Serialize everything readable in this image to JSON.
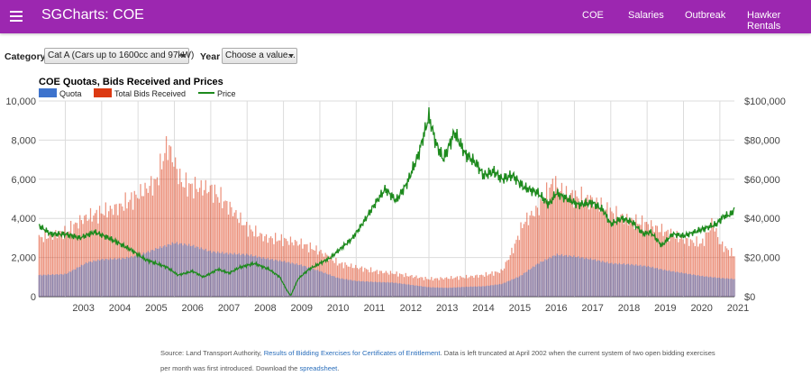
{
  "app": {
    "title": "SGCharts: COE",
    "nav": [
      {
        "label": "COE"
      },
      {
        "label": "Salaries"
      },
      {
        "label": "Outbreak"
      },
      {
        "label": "Hawker Rentals"
      }
    ]
  },
  "filters": {
    "category_label": "Category",
    "category_value": "Cat A (Cars up to 1600cc and 97kW)",
    "year_label": "Year",
    "year_value": "Choose a value..."
  },
  "colors": {
    "appbar": "#9c27b0",
    "quota": "#3d73cd",
    "bids": "#dc3912",
    "price": "#1d8a1d"
  },
  "icons": {
    "menu": "hamburger-menu-icon",
    "dropdown": "caret-down-icon"
  },
  "chart_data": {
    "type": "bar",
    "title": "COE Quotas, Bids Received and Prices",
    "legend": [
      "Quota",
      "Total Bids Received",
      "Price"
    ],
    "legend_position": "top-left",
    "grid": true,
    "y_left": {
      "min": 0,
      "max": 10000,
      "ticks": [
        "0",
        "2,000",
        "4,000",
        "6,000",
        "8,000",
        "10,000"
      ]
    },
    "y_right": {
      "min": 0,
      "max": 100000,
      "ticks": [
        "$0",
        "$20,000",
        "$40,000",
        "$60,000",
        "$80,000",
        "$100,000"
      ]
    },
    "x_years": [
      "2003",
      "2004",
      "2005",
      "2006",
      "2007",
      "2008",
      "2009",
      "2010",
      "2011",
      "2012",
      "2013",
      "2014",
      "2015",
      "2016",
      "2017",
      "2018",
      "2019",
      "2020",
      "2021"
    ],
    "x_range": [
      2002.27,
      2021.4
    ],
    "quota_points": [
      [
        2002.3,
        1100
      ],
      [
        2003.0,
        1150
      ],
      [
        2003.6,
        1750
      ],
      [
        2004.0,
        1900
      ],
      [
        2004.6,
        1950
      ],
      [
        2005.0,
        2100
      ],
      [
        2005.5,
        2450
      ],
      [
        2006.0,
        2750
      ],
      [
        2006.5,
        2600
      ],
      [
        2007.0,
        2300
      ],
      [
        2007.5,
        2200
      ],
      [
        2008.0,
        2150
      ],
      [
        2008.5,
        1950
      ],
      [
        2009.0,
        1800
      ],
      [
        2009.5,
        1600
      ],
      [
        2010.0,
        1300
      ],
      [
        2010.5,
        950
      ],
      [
        2011.0,
        800
      ],
      [
        2011.5,
        750
      ],
      [
        2012.0,
        720
      ],
      [
        2012.5,
        600
      ],
      [
        2013.0,
        480
      ],
      [
        2013.5,
        450
      ],
      [
        2014.0,
        500
      ],
      [
        2014.5,
        530
      ],
      [
        2015.0,
        650
      ],
      [
        2015.5,
        1050
      ],
      [
        2016.0,
        1700
      ],
      [
        2016.5,
        2150
      ],
      [
        2017.0,
        2050
      ],
      [
        2017.5,
        1900
      ],
      [
        2018.0,
        1700
      ],
      [
        2018.5,
        1650
      ],
      [
        2019.0,
        1550
      ],
      [
        2019.5,
        1350
      ],
      [
        2020.0,
        1200
      ],
      [
        2020.5,
        1050
      ],
      [
        2021.0,
        950
      ],
      [
        2021.4,
        900
      ]
    ],
    "bids_points": [
      [
        2002.3,
        3000
      ],
      [
        2003.0,
        3300
      ],
      [
        2003.5,
        4000
      ],
      [
        2004.0,
        4300
      ],
      [
        2004.5,
        4600
      ],
      [
        2005.0,
        5200
      ],
      [
        2005.5,
        5900
      ],
      [
        2005.8,
        7800
      ],
      [
        2006.2,
        5800
      ],
      [
        2006.5,
        5600
      ],
      [
        2007.0,
        5500
      ],
      [
        2007.5,
        4600
      ],
      [
        2008.0,
        3500
      ],
      [
        2008.5,
        3000
      ],
      [
        2009.0,
        2900
      ],
      [
        2009.5,
        2700
      ],
      [
        2010.0,
        2300
      ],
      [
        2010.5,
        1700
      ],
      [
        2011.0,
        1500
      ],
      [
        2011.5,
        1300
      ],
      [
        2012.0,
        1200
      ],
      [
        2012.5,
        1050
      ],
      [
        2013.0,
        900
      ],
      [
        2013.5,
        950
      ],
      [
        2014.0,
        1000
      ],
      [
        2014.5,
        1100
      ],
      [
        2015.0,
        1300
      ],
      [
        2015.3,
        2400
      ],
      [
        2015.6,
        3800
      ],
      [
        2016.0,
        4500
      ],
      [
        2016.4,
        5800
      ],
      [
        2016.7,
        5300
      ],
      [
        2017.0,
        5100
      ],
      [
        2017.5,
        4900
      ],
      [
        2018.0,
        4300
      ],
      [
        2018.5,
        3900
      ],
      [
        2019.0,
        3700
      ],
      [
        2019.5,
        3300
      ],
      [
        2020.0,
        2900
      ],
      [
        2020.5,
        2700
      ],
      [
        2020.8,
        3800
      ],
      [
        2021.0,
        2700
      ],
      [
        2021.4,
        2100
      ]
    ],
    "price_points": [
      [
        2002.3,
        36000
      ],
      [
        2002.6,
        32000
      ],
      [
        2003.0,
        32000
      ],
      [
        2003.4,
        30000
      ],
      [
        2003.8,
        33000
      ],
      [
        2004.2,
        30000
      ],
      [
        2004.5,
        27000
      ],
      [
        2004.8,
        24000
      ],
      [
        2005.2,
        19000
      ],
      [
        2005.5,
        17000
      ],
      [
        2005.8,
        15000
      ],
      [
        2006.1,
        11000
      ],
      [
        2006.5,
        13000
      ],
      [
        2006.8,
        10000
      ],
      [
        2007.2,
        14000
      ],
      [
        2007.5,
        12000
      ],
      [
        2007.8,
        15000
      ],
      [
        2008.2,
        17000
      ],
      [
        2008.6,
        14000
      ],
      [
        2008.9,
        10000
      ],
      [
        2009.1,
        3000
      ],
      [
        2009.2,
        500
      ],
      [
        2009.4,
        9000
      ],
      [
        2009.7,
        14000
      ],
      [
        2010.0,
        17000
      ],
      [
        2010.3,
        20000
      ],
      [
        2010.6,
        25000
      ],
      [
        2010.9,
        30000
      ],
      [
        2011.2,
        38000
      ],
      [
        2011.5,
        47000
      ],
      [
        2011.8,
        55000
      ],
      [
        2012.1,
        49000
      ],
      [
        2012.4,
        58000
      ],
      [
        2012.7,
        72000
      ],
      [
        2013.0,
        92000
      ],
      [
        2013.2,
        78000
      ],
      [
        2013.4,
        70000
      ],
      [
        2013.7,
        84000
      ],
      [
        2014.0,
        73000
      ],
      [
        2014.3,
        68000
      ],
      [
        2014.5,
        62000
      ],
      [
        2014.8,
        64000
      ],
      [
        2015.0,
        60000
      ],
      [
        2015.3,
        62000
      ],
      [
        2015.6,
        56000
      ],
      [
        2016.0,
        53000
      ],
      [
        2016.3,
        47000
      ],
      [
        2016.5,
        53000
      ],
      [
        2016.8,
        50000
      ],
      [
        2017.1,
        47000
      ],
      [
        2017.5,
        48000
      ],
      [
        2017.8,
        44000
      ],
      [
        2018.0,
        37000
      ],
      [
        2018.3,
        40000
      ],
      [
        2018.6,
        38000
      ],
      [
        2018.9,
        32000
      ],
      [
        2019.1,
        33000
      ],
      [
        2019.4,
        26000
      ],
      [
        2019.7,
        32000
      ],
      [
        2020.0,
        31000
      ],
      [
        2020.3,
        33000
      ],
      [
        2020.6,
        35000
      ],
      [
        2020.9,
        37000
      ],
      [
        2021.1,
        41000
      ],
      [
        2021.3,
        42000
      ],
      [
        2021.4,
        45000
      ]
    ]
  },
  "footer": {
    "source_prefix": "Source: Land Transport Authority, ",
    "source_link": "Results of Bidding Exercises for Certificates of Entitlement",
    "source_mid": ". Data is left truncated at April 2002 when the current system of two open bidding exercises per month was first introduced. Download the ",
    "spreadsheet_link": "spreadsheet",
    "source_end": "."
  }
}
